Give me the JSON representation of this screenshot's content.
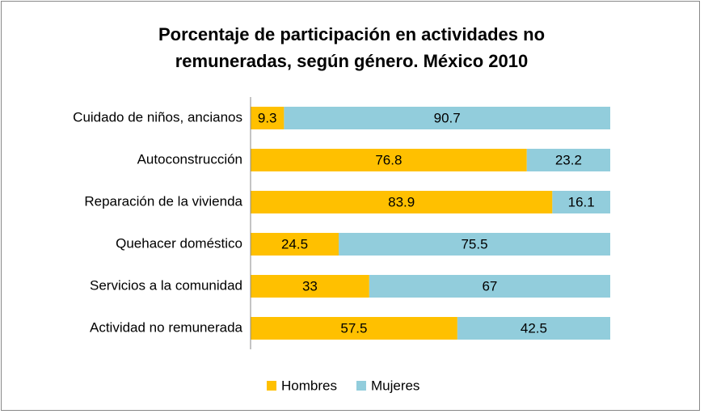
{
  "chart_data": {
    "type": "stacked-bar-horizontal",
    "title": "Porcentaje de participación en actividades no remuneradas, según género. México 2010",
    "categories": [
      "Cuidado de niños, ancianos",
      "Autoconstrucción",
      "Reparación de la vivienda",
      "Quehacer doméstico",
      "Servicios a la comunidad",
      "Actividad no remunerada"
    ],
    "series": [
      {
        "name": "Hombres",
        "color": "#FFC000",
        "values": [
          9.3,
          76.8,
          83.9,
          24.5,
          33,
          57.5
        ]
      },
      {
        "name": "Mujeres",
        "color": "#92CDDC",
        "values": [
          90.7,
          23.2,
          16.1,
          75.5,
          67,
          42.5
        ]
      }
    ],
    "xlim": [
      0,
      100
    ],
    "legend": "bottom"
  }
}
